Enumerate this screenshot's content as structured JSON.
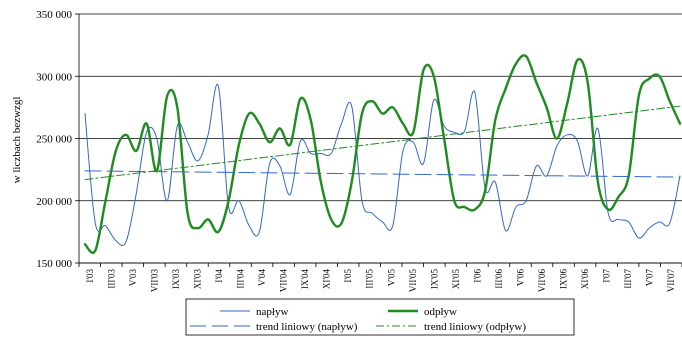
{
  "chart_data": {
    "type": "line",
    "ylabel": "w liczbach bezwzgl",
    "xlabel": "",
    "ylim": [
      150000,
      350000
    ],
    "y_ticks": [
      150000,
      200000,
      250000,
      300000,
      350000
    ],
    "y_tick_labels": [
      "150 000",
      "200 000",
      "250 000",
      "300 000",
      "350 000"
    ],
    "x_tick_labels": [
      "I'03",
      "III'03",
      "V'03",
      "VII'03",
      "IX'03",
      "XI'03",
      "I'04",
      "III'04",
      "V'04",
      "VII'04",
      "IX'04",
      "XI'04",
      "I'05",
      "III'05",
      "V'05",
      "VII'05",
      "IX'05",
      "XI'05",
      "I'06",
      "III'06",
      "V'06",
      "VII'06",
      "IX'06",
      "XI'06",
      "I'07",
      "III'07",
      "V'07",
      "VII'07"
    ],
    "grid": "horizontal",
    "legend_position": "bottom",
    "series": [
      {
        "name": "napływ",
        "color": "#3366cc",
        "style": "solid",
        "values": [
          270000,
          182000,
          180000,
          168000,
          167000,
          206000,
          255000,
          250000,
          200000,
          260000,
          247000,
          232000,
          253000,
          292000,
          195000,
          200000,
          180000,
          175000,
          230000,
          228000,
          205000,
          248000,
          238000,
          238000,
          238000,
          262000,
          276000,
          200000,
          190000,
          183000,
          180000,
          240000,
          247000,
          230000,
          281000,
          260000,
          255000,
          256000,
          287000,
          210000,
          215000,
          176000,
          195000,
          200000,
          228000,
          220000,
          244000,
          253000,
          248000,
          220000,
          258000,
          190000,
          185000,
          183000,
          170000,
          178000,
          183000,
          182000,
          220000
        ]
      },
      {
        "name": "odpływ",
        "color": "#1e8c1e",
        "style": "solid",
        "values": [
          165000,
          160000,
          200000,
          240000,
          253000,
          240000,
          262000,
          224000,
          284000,
          275000,
          190000,
          178000,
          185000,
          175000,
          200000,
          245000,
          270000,
          262000,
          247000,
          258000,
          245000,
          282000,
          265000,
          215000,
          185000,
          182000,
          215000,
          270000,
          280000,
          270000,
          275000,
          262000,
          255000,
          305000,
          300000,
          250000,
          200000,
          195000,
          193000,
          208000,
          265000,
          290000,
          310000,
          316000,
          295000,
          275000,
          250000,
          278000,
          313000,
          295000,
          215000,
          193000,
          203000,
          220000,
          285000,
          298000,
          300000,
          280000,
          262000
        ]
      },
      {
        "name": "trend liniowy (napływ)",
        "color": "#3366cc",
        "style": "dash",
        "values": [
          224000,
          219000
        ]
      },
      {
        "name": "trend liniowy (odpływ)",
        "color": "#1e8c1e",
        "style": "dashdot",
        "values": [
          217000,
          276000
        ]
      }
    ],
    "legend": [
      {
        "label": "napływ",
        "series": 0
      },
      {
        "label": "odpływ",
        "series": 1
      },
      {
        "label": "trend liniowy (napływ)",
        "series": 2
      },
      {
        "label": "trend liniowy (odpływ)",
        "series": 3
      }
    ]
  }
}
